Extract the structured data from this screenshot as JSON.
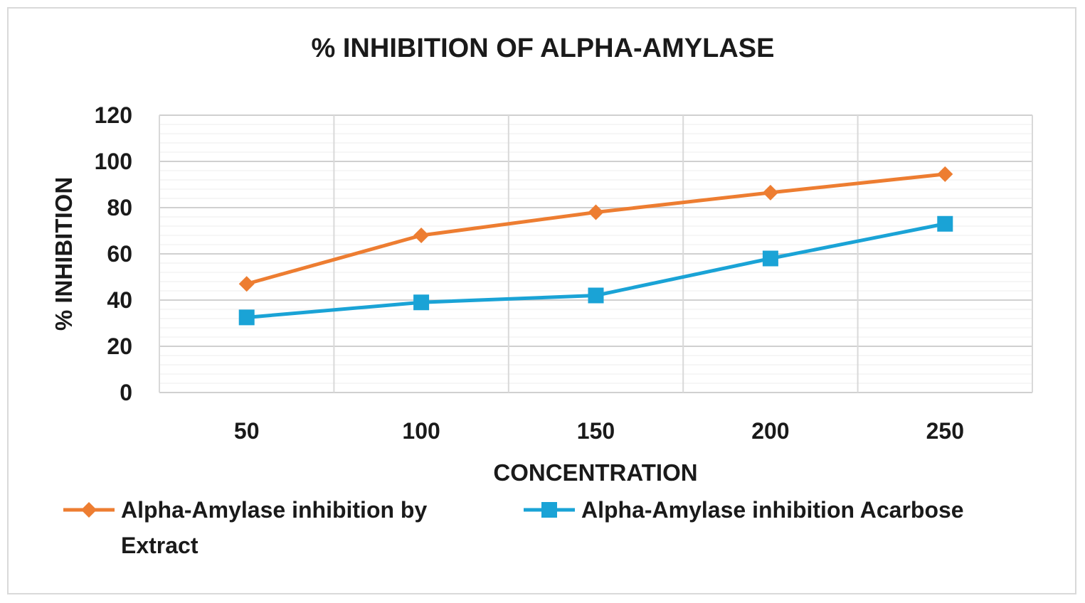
{
  "chart_data": {
    "type": "line",
    "title": "% INHIBITION OF ALPHA-AMYLASE",
    "xlabel": "CONCENTRATION",
    "ylabel": "% INHIBITION",
    "categories": [
      "50",
      "100",
      "150",
      "200",
      "250"
    ],
    "ylim": [
      0,
      120
    ],
    "yticks": [
      "0",
      "20",
      "40",
      "60",
      "80",
      "100",
      "120"
    ],
    "grid": true,
    "legend_position": "bottom",
    "series": [
      {
        "name": "Alpha-Amylase inhibition by Extract",
        "name_lines": [
          "Alpha-Amylase inhibition by",
          "Extract"
        ],
        "marker": "diamond",
        "color": "#ed7d31",
        "values": [
          47,
          68,
          78,
          86.5,
          94.5
        ]
      },
      {
        "name": "Alpha-Amylase inhibition Acarbose",
        "name_lines": [
          "Alpha-Amylase inhibition Acarbose"
        ],
        "marker": "square",
        "color": "#1aa3d6",
        "values": [
          32.5,
          39,
          42,
          58,
          73
        ]
      }
    ]
  }
}
